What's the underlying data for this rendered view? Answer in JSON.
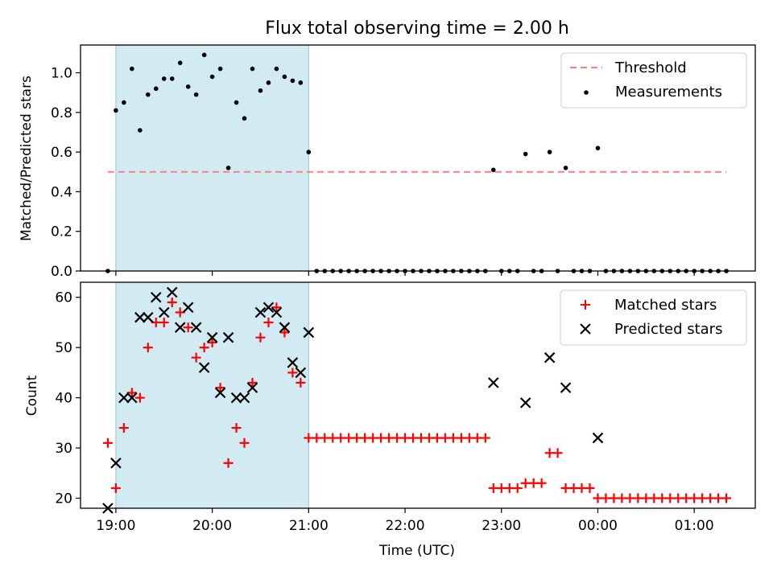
{
  "title": "Flux total observing time = 2.00 h",
  "chart_data": [
    {
      "type": "scatter",
      "ylabel": "Matched/Predicted stars",
      "xlabel": "",
      "ylim": [
        0,
        1.14
      ],
      "yticks": [
        0.0,
        0.2,
        0.4,
        0.6,
        0.8,
        1.0
      ],
      "ytick_labels": [
        "0.0",
        "0.2",
        "0.4",
        "0.6",
        "0.8",
        "1.0"
      ],
      "legend_position": "top-right",
      "shaded_interval": [
        "19:00",
        "21:00"
      ],
      "threshold": {
        "name": "Threshold",
        "value": 0.5,
        "x_range": [
          "18:55",
          "01:20"
        ],
        "color": "#ff7f7f"
      },
      "series": [
        {
          "name": "Measurements",
          "color": "#000000",
          "marker": "dot",
          "x": [
            "18:55",
            "19:00",
            "19:05",
            "19:10",
            "19:15",
            "19:20",
            "19:25",
            "19:30",
            "19:35",
            "19:40",
            "19:45",
            "19:50",
            "19:55",
            "20:00",
            "20:05",
            "20:10",
            "20:15",
            "20:20",
            "20:25",
            "20:30",
            "20:35",
            "20:40",
            "20:45",
            "20:50",
            "20:55",
            "21:00",
            "21:05",
            "21:10",
            "21:15",
            "21:20",
            "21:25",
            "21:30",
            "21:35",
            "21:40",
            "21:45",
            "21:50",
            "21:55",
            "22:00",
            "22:05",
            "22:10",
            "22:15",
            "22:20",
            "22:25",
            "22:30",
            "22:35",
            "22:40",
            "22:45",
            "22:50",
            "22:55",
            "23:00",
            "23:05",
            "23:10",
            "23:15",
            "23:20",
            "23:25",
            "23:30",
            "23:35",
            "23:40",
            "23:45",
            "23:50",
            "23:55",
            "00:00",
            "00:05",
            "00:10",
            "00:15",
            "00:20",
            "00:25",
            "00:30",
            "00:35",
            "00:40",
            "00:45",
            "00:50",
            "00:55",
            "01:00",
            "01:05",
            "01:10",
            "01:15",
            "01:20"
          ],
          "y": [
            0.0,
            0.81,
            0.85,
            1.02,
            0.71,
            0.89,
            0.92,
            0.97,
            0.97,
            1.05,
            0.93,
            0.89,
            1.09,
            0.98,
            1.02,
            0.52,
            0.85,
            0.77,
            1.02,
            0.91,
            0.95,
            1.02,
            0.98,
            0.96,
            0.95,
            0.6,
            0.0,
            0.0,
            0.0,
            0.0,
            0.0,
            0.0,
            0.0,
            0.0,
            0.0,
            0.0,
            0.0,
            0.0,
            0.0,
            0.0,
            0.0,
            0.0,
            0.0,
            0.0,
            0.0,
            0.0,
            0.0,
            0.0,
            0.51,
            0.0,
            0.0,
            0.0,
            0.59,
            0.0,
            0.0,
            0.6,
            0.0,
            0.52,
            0.0,
            0.0,
            0.0,
            0.62,
            0.0,
            0.0,
            0.0,
            0.0,
            0.0,
            0.0,
            0.0,
            0.0,
            0.0,
            0.0,
            0.0,
            0.0,
            0.0,
            0.0,
            0.0,
            0.0
          ]
        }
      ]
    },
    {
      "type": "scatter",
      "ylabel": "Count",
      "xlabel": "Time (UTC)",
      "ylim": [
        18,
        63
      ],
      "yticks": [
        20,
        30,
        40,
        50,
        60
      ],
      "ytick_labels": [
        "20",
        "30",
        "40",
        "50",
        "60"
      ],
      "xticks": [
        "19:00",
        "20:00",
        "21:00",
        "22:00",
        "23:00",
        "00:00",
        "01:00"
      ],
      "xlim": [
        "18:38",
        "01:38"
      ],
      "legend_position": "top-right",
      "shaded_interval": [
        "19:00",
        "21:00"
      ],
      "series": [
        {
          "name": "Matched stars",
          "color": "#ff0000",
          "marker": "plus",
          "x": [
            "18:55",
            "19:00",
            "19:05",
            "19:10",
            "19:15",
            "19:20",
            "19:25",
            "19:30",
            "19:35",
            "19:40",
            "19:45",
            "19:50",
            "19:55",
            "20:00",
            "20:05",
            "20:10",
            "20:15",
            "20:20",
            "20:25",
            "20:30",
            "20:35",
            "20:40",
            "20:45",
            "20:50",
            "20:55",
            "21:00",
            "21:05",
            "21:10",
            "21:15",
            "21:20",
            "21:25",
            "21:30",
            "21:35",
            "21:40",
            "21:45",
            "21:50",
            "21:55",
            "22:00",
            "22:05",
            "22:10",
            "22:15",
            "22:20",
            "22:25",
            "22:30",
            "22:35",
            "22:40",
            "22:45",
            "22:50",
            "22:55",
            "23:00",
            "23:05",
            "23:10",
            "23:15",
            "23:20",
            "23:25",
            "23:30",
            "23:35",
            "23:40",
            "23:45",
            "23:50",
            "23:55",
            "00:00",
            "00:05",
            "00:10",
            "00:15",
            "00:20",
            "00:25",
            "00:30",
            "00:35",
            "00:40",
            "00:45",
            "00:50",
            "00:55",
            "01:00",
            "01:05",
            "01:10",
            "01:15",
            "01:20"
          ],
          "y": [
            31,
            22,
            34,
            41,
            40,
            50,
            55,
            55,
            59,
            57,
            54,
            48,
            50,
            51,
            42,
            27,
            34,
            31,
            43,
            52,
            55,
            58,
            53,
            45,
            43,
            32,
            32,
            32,
            32,
            32,
            32,
            32,
            32,
            32,
            32,
            32,
            32,
            32,
            32,
            32,
            32,
            32,
            32,
            32,
            32,
            32,
            32,
            32,
            22,
            22,
            22,
            22,
            23,
            23,
            23,
            29,
            29,
            22,
            22,
            22,
            22,
            20,
            20,
            20,
            20,
            20,
            20,
            20,
            20,
            20,
            20,
            20,
            20,
            20,
            20,
            20,
            20,
            20
          ]
        },
        {
          "name": "Predicted stars",
          "color": "#000000",
          "marker": "x",
          "x": [
            "18:55",
            "19:00",
            "19:05",
            "19:10",
            "19:15",
            "19:20",
            "19:25",
            "19:30",
            "19:35",
            "19:40",
            "19:45",
            "19:50",
            "19:55",
            "20:00",
            "20:05",
            "20:10",
            "20:15",
            "20:20",
            "20:25",
            "20:30",
            "20:35",
            "20:40",
            "20:45",
            "20:50",
            "20:55",
            "21:00",
            "22:55",
            "23:15",
            "23:30",
            "23:40",
            "00:00"
          ],
          "y": [
            18,
            27,
            40,
            40,
            56,
            56,
            60,
            57,
            61,
            54,
            58,
            54,
            46,
            52,
            41,
            52,
            40,
            40,
            42,
            57,
            58,
            57,
            54,
            47,
            45,
            53,
            43,
            39,
            48,
            42,
            32
          ]
        }
      ]
    }
  ]
}
